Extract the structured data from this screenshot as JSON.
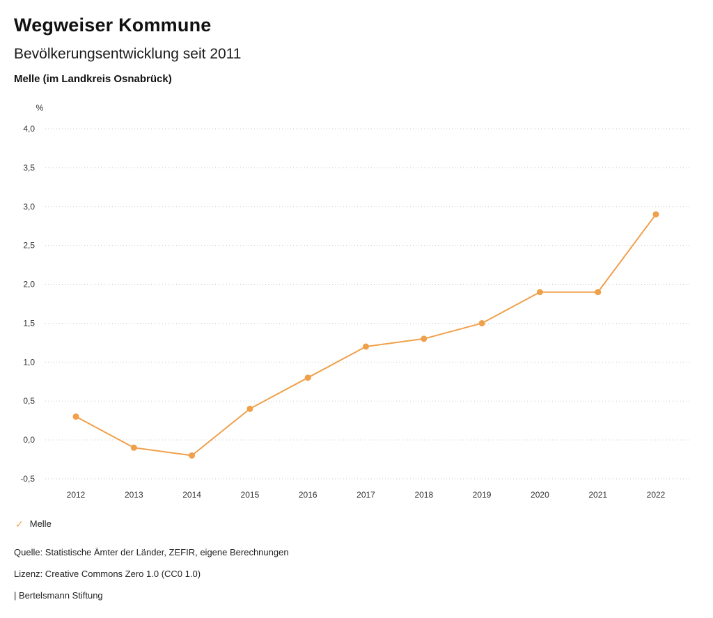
{
  "header": {
    "title": "Wegweiser Kommune",
    "subtitle": "Bevölkerungsentwicklung seit 2011",
    "region": "Melle (im Landkreis Osnabrück)"
  },
  "chart_data": {
    "type": "line",
    "title": "Bevölkerungsentwicklung seit 2011",
    "unit_label": "%",
    "categories": [
      "2012",
      "2013",
      "2014",
      "2015",
      "2016",
      "2017",
      "2018",
      "2019",
      "2020",
      "2021",
      "2022"
    ],
    "series": [
      {
        "name": "Melle",
        "color": "#f0a04a",
        "values": [
          0.3,
          -0.1,
          -0.2,
          0.4,
          0.8,
          1.2,
          1.3,
          1.5,
          1.9,
          1.9,
          2.9
        ]
      }
    ],
    "ylim": [
      -0.5,
      4.0
    ],
    "yticks": [
      -0.5,
      0.0,
      0.5,
      1.0,
      1.5,
      2.0,
      2.5,
      3.0,
      3.5,
      4.0
    ],
    "ytick_labels": [
      "-0,5",
      "0,0",
      "0,5",
      "1,0",
      "1,5",
      "2,0",
      "2,5",
      "3,0",
      "3,5",
      "4,0"
    ],
    "grid": "horizontal-dotted",
    "legend_position": "bottom-left",
    "xlabel": "",
    "ylabel": "%"
  },
  "legend": {
    "check_icon": "✓",
    "items": [
      {
        "label": "Melle",
        "color": "#f0a04a"
      }
    ]
  },
  "footer": {
    "source": "Quelle: Statistische Ämter der Länder, ZEFIR, eigene Berechnungen",
    "license": "Lizenz: Creative Commons Zero 1.0 (CC0 1.0)",
    "attribution": "| Bertelsmann Stiftung"
  }
}
